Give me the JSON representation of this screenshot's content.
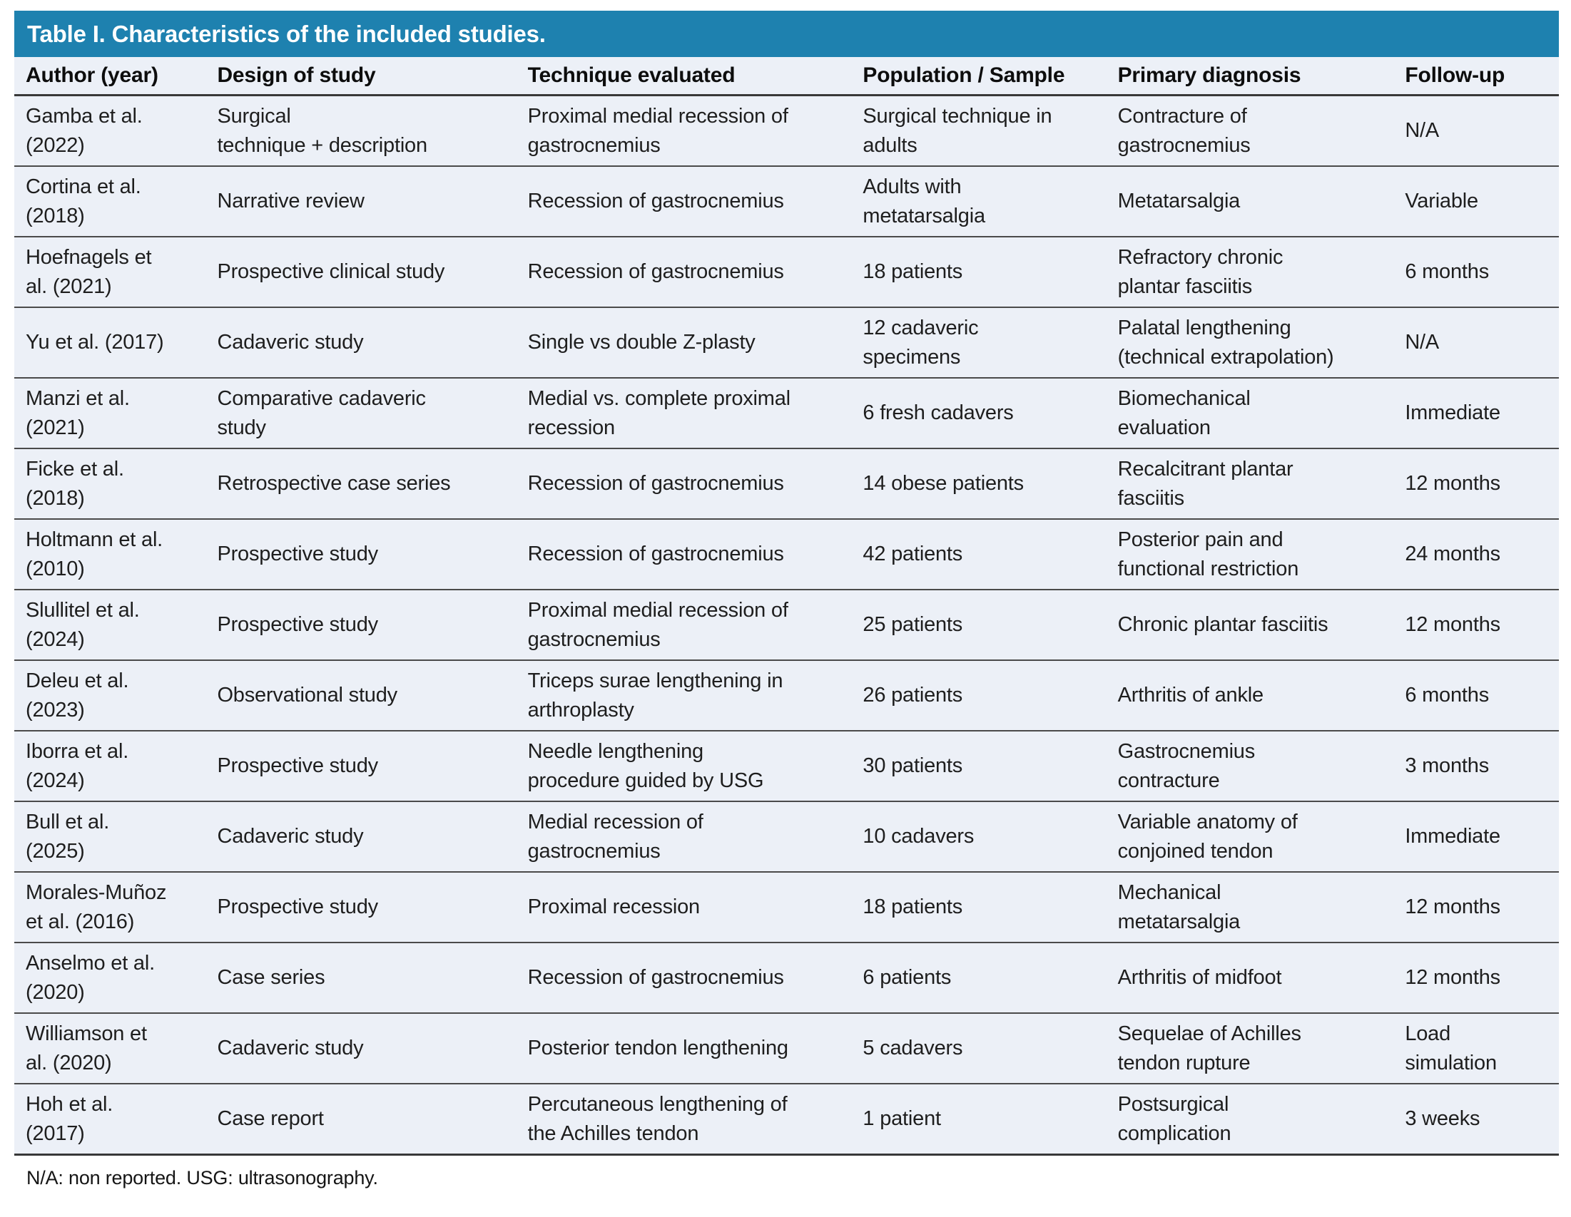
{
  "title": "Table I. Characteristics of the included studies.",
  "footnote": "N/A: non reported. USG: ultrasonography.",
  "colors": {
    "title_bar": "#1E81AF",
    "title_text": "#FFFFFF",
    "row_bg": "#ECF0F7",
    "rule": "#4A4A4A",
    "heavy_rule": "#383838",
    "body_text": "#1E1E1E"
  },
  "table": {
    "headers": [
      "Author (year)",
      "Design of study",
      "Technique evaluated",
      "Population / Sample",
      "Primary diagnosis",
      "Follow-up"
    ],
    "col_widths_pct": [
      12.4,
      20.1,
      21.7,
      16.5,
      18.6,
      10.7
    ],
    "rows": [
      [
        "Gamba et al.\n(2022)",
        "Surgical\ntechnique + description",
        "Proximal medial recession of\ngastrocnemius",
        "Surgical technique in\nadults",
        "Contracture of\ngastrocnemius",
        "N/A"
      ],
      [
        "Cortina et al.\n(2018)",
        "Narrative review",
        "Recession of gastrocnemius",
        "Adults with\nmetatarsalgia",
        "Metatarsalgia",
        "Variable"
      ],
      [
        "Hoefnagels et\nal. (2021)",
        "Prospective clinical study",
        "Recession of gastrocnemius",
        "18 patients",
        "Refractory chronic\nplantar fasciitis",
        "6 months"
      ],
      [
        "Yu et al. (2017)",
        "Cadaveric study",
        "Single vs double Z-plasty",
        "12 cadaveric\nspecimens",
        "Palatal lengthening\n(technical extrapolation)",
        "N/A"
      ],
      [
        "Manzi et al.\n(2021)",
        "Comparative cadaveric\nstudy",
        "Medial vs. complete proximal\nrecession",
        "6 fresh cadavers",
        "Biomechanical\nevaluation",
        "Immediate"
      ],
      [
        "Ficke et al.\n(2018)",
        "Retrospective case series",
        "Recession of gastrocnemius",
        "14 obese patients",
        "Recalcitrant plantar\nfasciitis",
        "12 months"
      ],
      [
        "Holtmann et al.\n(2010)",
        "Prospective study",
        "Recession of gastrocnemius",
        "42 patients",
        "Posterior pain and\nfunctional restriction",
        "24 months"
      ],
      [
        "Slullitel et al.\n(2024)",
        "Prospective study",
        "Proximal medial recession of\ngastrocnemius",
        "25 patients",
        "Chronic plantar fasciitis",
        "12 months"
      ],
      [
        "Deleu et al.\n(2023)",
        "Observational study",
        "Triceps surae lengthening in\narthroplasty",
        "26 patients",
        "Arthritis of ankle",
        "6 months"
      ],
      [
        "Iborra et al.\n(2024)",
        "Prospective study",
        "Needle lengthening\nprocedure guided by USG",
        "30 patients",
        "Gastrocnemius\ncontracture",
        "3 months"
      ],
      [
        "Bull et al.\n(2025)",
        "Cadaveric study",
        "Medial recession of\ngastrocnemius",
        "10 cadavers",
        "Variable anatomy of\nconjoined tendon",
        "Immediate"
      ],
      [
        "Morales-Muñoz\net al. (2016)",
        "Prospective study",
        "Proximal recession",
        "18 patients",
        "Mechanical\nmetatarsalgia",
        "12 months"
      ],
      [
        "Anselmo et al.\n(2020)",
        "Case series",
        "Recession of gastrocnemius",
        "6 patients",
        "Arthritis of midfoot",
        "12 months"
      ],
      [
        "Williamson et\nal. (2020)",
        "Cadaveric study",
        "Posterior tendon lengthening",
        "5 cadavers",
        "Sequelae of Achilles\ntendon rupture",
        "Load\nsimulation"
      ],
      [
        "Hoh et al.\n(2017)",
        "Case report",
        "Percutaneous lengthening of\nthe Achilles tendon",
        "1 patient",
        "Postsurgical\ncomplication",
        "3 weeks"
      ]
    ]
  }
}
